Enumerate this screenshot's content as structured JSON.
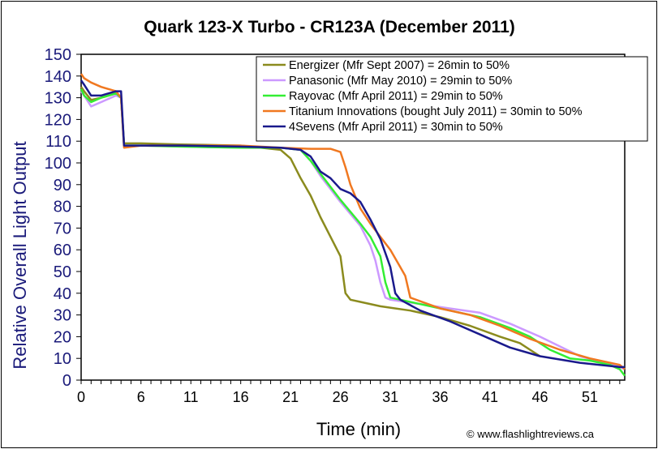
{
  "chart_data": {
    "type": "line",
    "title": "Quark 123-X Turbo - CR123A (December 2011)",
    "xlabel": "Time (min)",
    "ylabel": "Relative Overall Light Output",
    "credit": "© www.flashlightreviews.ca",
    "xlim": [
      0,
      54.5
    ],
    "ylim": [
      0,
      150
    ],
    "xticks": [
      0,
      6,
      11,
      16,
      21,
      26,
      31,
      36,
      41,
      46,
      51
    ],
    "yticks": [
      0,
      10,
      20,
      30,
      40,
      50,
      60,
      70,
      80,
      90,
      100,
      110,
      120,
      130,
      140,
      150
    ],
    "grid": false,
    "legend_position": "top-right",
    "series": [
      {
        "name": "Energizer (Mfr Sept 2007) = 26min to 50%",
        "color": "#8B8B1E",
        "x": [
          0,
          0.3,
          1,
          2,
          3.5,
          4,
          4.3,
          6,
          10,
          16,
          20,
          21,
          22,
          23,
          24,
          25,
          26,
          26.5,
          27,
          28,
          30,
          33,
          36,
          39,
          42,
          44,
          45,
          46
        ],
        "y": [
          135,
          133,
          129,
          130,
          132,
          130,
          109,
          109,
          108.5,
          108,
          106,
          102,
          93,
          85,
          75,
          66,
          57,
          40,
          37,
          36,
          34,
          32,
          29,
          25,
          20,
          17,
          14,
          11
        ]
      },
      {
        "name": "Panasonic (Mfr May 2010) = 29min to 50%",
        "color": "#CC99FF",
        "x": [
          0,
          0.3,
          1,
          2,
          3.5,
          4,
          4.3,
          6,
          10,
          16,
          20,
          22,
          23,
          24,
          26,
          28,
          29,
          29.5,
          30,
          30.5,
          31,
          34,
          37,
          40,
          43,
          46,
          50,
          54,
          54.5
        ],
        "y": [
          133,
          131,
          126,
          128,
          131,
          130,
          108,
          108,
          107.5,
          107,
          107,
          106,
          101,
          94,
          82,
          71,
          62,
          55,
          45,
          38,
          37,
          35,
          33,
          31,
          26,
          20,
          11,
          6,
          5
        ]
      },
      {
        "name": "Rayovac (Mfr April 2011) = 29min to 50%",
        "color": "#33EE33",
        "x": [
          0,
          0.3,
          1,
          2,
          3.5,
          4,
          4.3,
          6,
          10,
          16,
          20,
          22,
          23,
          24,
          26,
          28,
          29,
          30,
          30.5,
          31,
          34,
          37,
          40,
          43,
          45,
          47,
          49,
          51,
          53,
          54,
          54.5
        ],
        "y": [
          134,
          131,
          128,
          130,
          132,
          130,
          108,
          108,
          107.5,
          107,
          107,
          106,
          101,
          95,
          83,
          72,
          66,
          57,
          45,
          38,
          35,
          32,
          29,
          24,
          20,
          14,
          10,
          9,
          7,
          5,
          2
        ]
      },
      {
        "name": "Titanium Innovations (bought July 2011) = 30min to 50%",
        "color": "#F07820",
        "x": [
          0,
          0.3,
          1,
          2,
          3.5,
          4,
          4.3,
          6,
          10,
          16,
          20,
          23,
          25,
          26,
          26.5,
          27,
          28,
          29,
          30,
          31,
          32,
          32.5,
          33,
          36,
          39,
          42,
          45,
          48,
          51,
          54,
          54.5
        ],
        "y": [
          141,
          139,
          137,
          135,
          133,
          130,
          107,
          108,
          108,
          108,
          107,
          106.5,
          106.5,
          105,
          98,
          90,
          79,
          72,
          66,
          60,
          52,
          48,
          38,
          33,
          30,
          25,
          19,
          14,
          10,
          7,
          5
        ]
      },
      {
        "name": "4Sevens (Mfr April 2011) = 30min to 50%",
        "color": "#1A1A8C",
        "x": [
          0,
          0.3,
          1,
          2,
          3.5,
          4,
          4.3,
          6,
          10,
          16,
          20,
          22,
          23,
          24,
          25,
          26,
          27,
          28,
          29,
          30,
          31,
          31.5,
          32,
          34,
          37,
          40,
          43,
          46,
          50,
          54,
          54.5
        ],
        "y": [
          138,
          136,
          131,
          131,
          133,
          133,
          108,
          108,
          108,
          107.5,
          107,
          106,
          103,
          96,
          93,
          88,
          86,
          82,
          74,
          65,
          52,
          40,
          37,
          32,
          27,
          21,
          15,
          11,
          8,
          6,
          6
        ]
      }
    ]
  }
}
